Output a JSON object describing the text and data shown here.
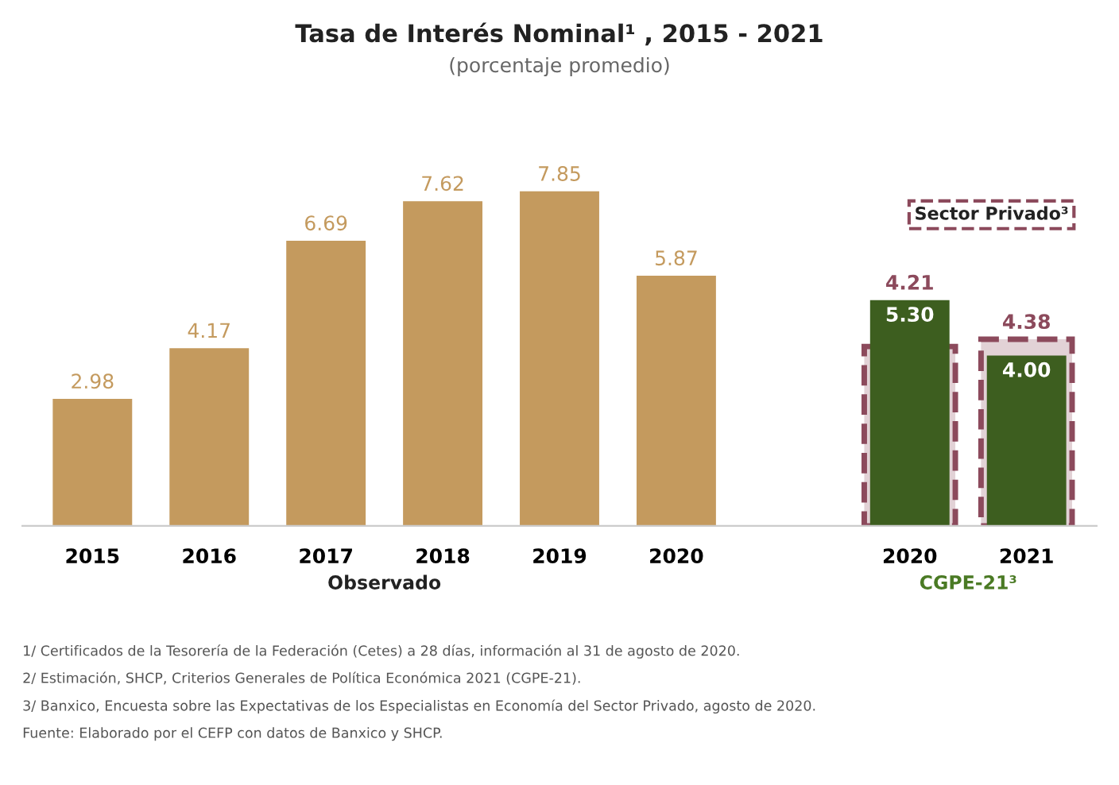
{
  "chart_data": {
    "type": "bar",
    "title": "Tasa de Interés Nominal¹ , 2015 - 2021",
    "subtitle": "(porcentaje promedio)",
    "categories": [
      "2015",
      "2016",
      "2017",
      "2018",
      "2019",
      "2020",
      null,
      "2020",
      "2021"
    ],
    "series": [
      {
        "name": "Observado",
        "color": "#c49a5e",
        "values": [
          2.98,
          4.17,
          6.69,
          7.62,
          7.85,
          5.87,
          null,
          null,
          null
        ],
        "value_labels": [
          "2.98",
          "4.17",
          "6.69",
          "7.62",
          "7.85",
          "5.87",
          null,
          null,
          null
        ]
      },
      {
        "name": "CGPE-21³",
        "color": "#3d5e1f",
        "values": [
          null,
          null,
          null,
          null,
          null,
          null,
          null,
          5.3,
          4.0
        ],
        "value_labels": [
          null,
          null,
          null,
          null,
          null,
          null,
          null,
          "5.30",
          "4.00"
        ]
      },
      {
        "name": "Sector Privado³",
        "color": "#8c4a5c",
        "line_style": "dashed",
        "values": [
          null,
          null,
          null,
          null,
          null,
          null,
          null,
          4.21,
          4.38
        ],
        "value_labels": [
          null,
          null,
          null,
          null,
          null,
          null,
          null,
          "4.21",
          "4.38"
        ]
      }
    ],
    "tick_labels": "x",
    "grid": false,
    "legend": false,
    "annotations": [
      "1/ Certificados de la Tesorería de la Federación (Cetes) a 28 días, información al 31 de agosto de 2020.",
      "2/ Estimación, SHCP, Criterios Generales de Política Económica 2021 (CGPE-21).",
      "3/ Banxico, Encuesta sobre las Expectativas de los Especialistas en Economía del Sector Privado, agosto de 2020.",
      "Fuente: Elaborado por el CEFP con datos de Banxico y SHCP."
    ]
  }
}
